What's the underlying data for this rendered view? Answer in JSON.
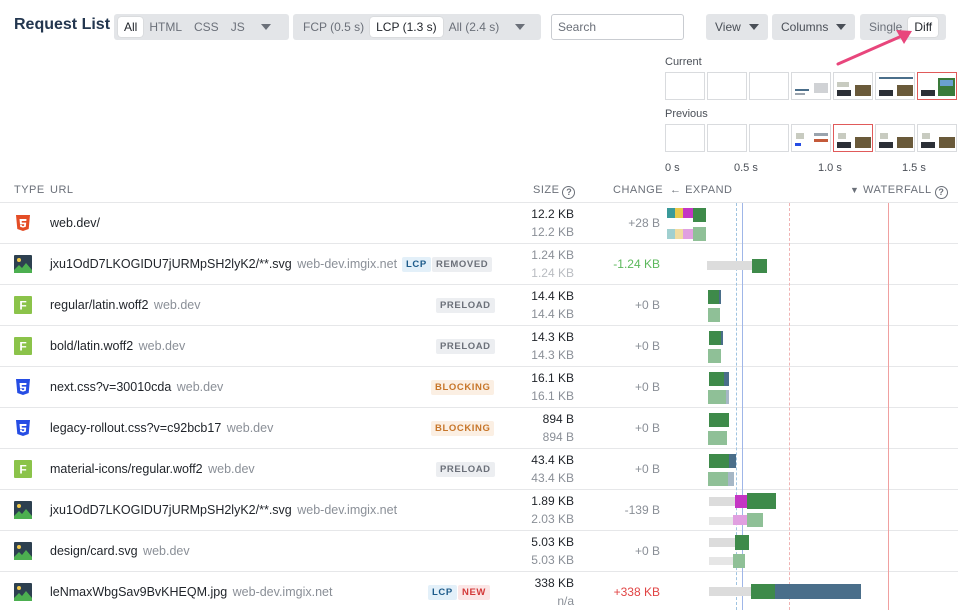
{
  "title": "Request List",
  "type_filter": {
    "options": [
      "All",
      "HTML",
      "CSS",
      "JS"
    ],
    "active": "All"
  },
  "timing_filter": {
    "options": [
      "FCP (0.5 s)",
      "LCP (1.3 s)",
      "All (2.4 s)"
    ],
    "active": "LCP (1.3 s)"
  },
  "search": {
    "placeholder": "Search",
    "value": ""
  },
  "view_button": "View",
  "columns_button": "Columns",
  "mode_toggle": {
    "single": "Single",
    "diff": "Diff",
    "active": "Diff"
  },
  "filmstrip": {
    "current_label": "Current",
    "previous_label": "Previous",
    "axis": [
      "0 s",
      "0.5 s",
      "1.0 s",
      "1.5 s"
    ]
  },
  "table": {
    "headers": {
      "type": "TYPE",
      "url": "URL",
      "size": "SIZE",
      "change": "CHANGE",
      "expand": "EXPAND",
      "waterfall": "WATERFALL"
    },
    "rows": [
      {
        "type": "html-icon",
        "url": "web.dev/",
        "host": "",
        "badges": [],
        "size_current": "12.2 KB",
        "size_previous": "12.2 KB",
        "change": "+28 B"
      },
      {
        "type": "image-icon",
        "url": "jxu1OdD7LKOGIDU7jURMpSH2lyK2/**.svg",
        "host": "web-dev.imgix.net",
        "badges": [
          "LCP",
          "REMOVED"
        ],
        "size_current": "1.24 KB",
        "size_previous": "1.24 KB",
        "change": "-1.24 KB"
      },
      {
        "type": "font-icon",
        "url": "regular/latin.woff2",
        "host": "web.dev",
        "badges": [
          "PRELOAD"
        ],
        "size_current": "14.4 KB",
        "size_previous": "14.4 KB",
        "change": "+0 B"
      },
      {
        "type": "font-icon",
        "url": "bold/latin.woff2",
        "host": "web.dev",
        "badges": [
          "PRELOAD"
        ],
        "size_current": "14.3 KB",
        "size_previous": "14.3 KB",
        "change": "+0 B"
      },
      {
        "type": "css-icon",
        "url": "next.css?v=30010cda",
        "host": "web.dev",
        "badges": [
          "BLOCKING"
        ],
        "size_current": "16.1 KB",
        "size_previous": "16.1 KB",
        "change": "+0 B"
      },
      {
        "type": "css-icon",
        "url": "legacy-rollout.css?v=c92bcb17",
        "host": "web.dev",
        "badges": [
          "BLOCKING"
        ],
        "size_current": "894 B",
        "size_previous": "894 B",
        "change": "+0 B"
      },
      {
        "type": "font-icon",
        "url": "material-icons/regular.woff2",
        "host": "web.dev",
        "badges": [
          "PRELOAD"
        ],
        "size_current": "43.4 KB",
        "size_previous": "43.4 KB",
        "change": "+0 B"
      },
      {
        "type": "image-icon",
        "url": "jxu1OdD7LKOGIDU7jURMpSH2lyK2/**.svg",
        "host": "web-dev.imgix.net",
        "badges": [],
        "size_current": "1.89 KB",
        "size_previous": "2.03 KB",
        "change": "-139 B"
      },
      {
        "type": "image-icon",
        "url": "design/card.svg",
        "host": "web.dev",
        "badges": [],
        "size_current": "5.03 KB",
        "size_previous": "5.03 KB",
        "change": "+0 B"
      },
      {
        "type": "image-icon",
        "url": "leNmaxWbgSav9BvKHEQM.jpg",
        "host": "web-dev.imgix.net",
        "badges": [
          "LCP",
          "NEW"
        ],
        "size_current": "338 KB",
        "size_previous": "n/a",
        "change": "+338 KB"
      }
    ]
  },
  "colors": {
    "html": "#e44d26",
    "css": "#264de4",
    "font": "#8bc34a",
    "image": "#2d4050",
    "bar_green": "#3e8a4a",
    "bar_blue": "#4a6e8a",
    "bar_magenta": "#c436c4",
    "bar_grey": "#dcdcdc",
    "annotation_arrow": "#e8467c"
  }
}
